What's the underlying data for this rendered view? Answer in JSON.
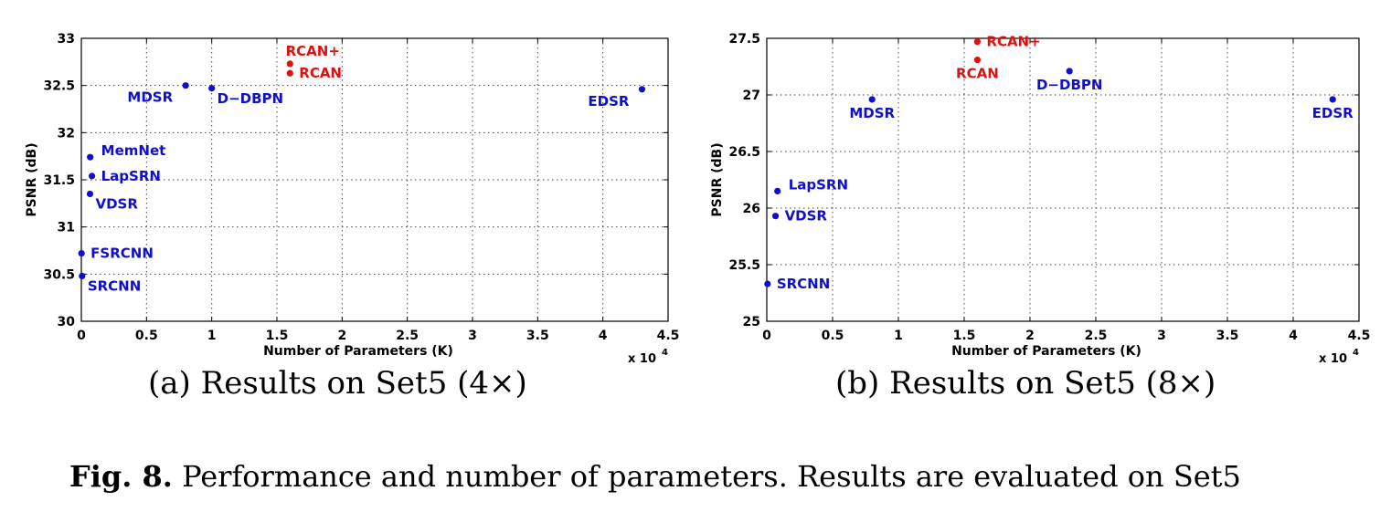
{
  "colors": {
    "baseline": "#1010cc",
    "ours": "#e01010",
    "grid": "#444444",
    "axis": "#000000"
  },
  "caption": {
    "label": "Fig. 8.",
    "text": "Performance and number of parameters. Results are evaluated on Set5"
  },
  "chart_data": [
    {
      "type": "scatter",
      "subcaption": "(a) Results on Set5 (4×)",
      "xlabel": "Number of Parameters (K)",
      "ylabel": "PSNR (dB)",
      "x_exponent": "x 10",
      "x_exponent_power": "4",
      "xlim": [
        0,
        4.5
      ],
      "ylim": [
        30,
        33
      ],
      "xticks": [
        0,
        0.5,
        1,
        1.5,
        2,
        2.5,
        3,
        3.5,
        4,
        4.5
      ],
      "yticks": [
        30,
        30.5,
        31,
        31.5,
        32,
        32.5,
        33
      ],
      "xtick_labels": [
        "0",
        "0.5",
        "1",
        "1.5",
        "2",
        "2.5",
        "3",
        "3.5",
        "4",
        "4.5"
      ],
      "ytick_labels": [
        "30",
        "30.5",
        "31",
        "31.5",
        "32",
        "32.5",
        "33"
      ],
      "grid": true,
      "points": [
        {
          "name": "SRCNN",
          "x": 0.0057,
          "y": 30.48,
          "group": "baseline",
          "label_pos": "below-right"
        },
        {
          "name": "FSRCNN",
          "x": 0.0012,
          "y": 30.72,
          "group": "baseline",
          "label_pos": "right"
        },
        {
          "name": "VDSR",
          "x": 0.0665,
          "y": 31.35,
          "group": "baseline",
          "label_pos": "below-right"
        },
        {
          "name": "LapSRN",
          "x": 0.0813,
          "y": 31.54,
          "group": "baseline",
          "label_pos": "right"
        },
        {
          "name": "MemNet",
          "x": 0.0677,
          "y": 31.74,
          "group": "baseline",
          "label_pos": "above-right"
        },
        {
          "name": "MDSR",
          "x": 0.8,
          "y": 32.5,
          "group": "baseline",
          "label_pos": "below-left"
        },
        {
          "name": "D−DBPN",
          "x": 1.0,
          "y": 32.47,
          "group": "baseline",
          "label_pos": "below-right"
        },
        {
          "name": "EDSR",
          "x": 4.3,
          "y": 32.46,
          "group": "baseline",
          "label_pos": "below-left"
        },
        {
          "name": "RCAN",
          "x": 1.6,
          "y": 32.63,
          "group": "ours",
          "label_pos": "right"
        },
        {
          "name": "RCAN+",
          "x": 1.6,
          "y": 32.73,
          "group": "ours",
          "label_pos": "above"
        }
      ]
    },
    {
      "type": "scatter",
      "subcaption": "(b) Results on Set5 (8×)",
      "xlabel": "Number of Parameters (K)",
      "ylabel": "PSNR (dB)",
      "x_exponent": "x 10",
      "x_exponent_power": "4",
      "xlim": [
        0,
        4.5
      ],
      "ylim": [
        25,
        27.5
      ],
      "xticks": [
        0,
        0.5,
        1,
        1.5,
        2,
        2.5,
        3,
        3.5,
        4,
        4.5
      ],
      "yticks": [
        25,
        25.5,
        26,
        26.5,
        27,
        27.5
      ],
      "xtick_labels": [
        "0",
        "0.5",
        "1",
        "1.5",
        "2",
        "2.5",
        "3",
        "3.5",
        "4",
        "4.5"
      ],
      "ytick_labels": [
        "25",
        "25.5",
        "26",
        "26.5",
        "27",
        "27.5"
      ],
      "grid": true,
      "points": [
        {
          "name": "SRCNN",
          "x": 0.0057,
          "y": 25.33,
          "group": "baseline",
          "label_pos": "right"
        },
        {
          "name": "VDSR",
          "x": 0.0665,
          "y": 25.93,
          "group": "baseline",
          "label_pos": "right"
        },
        {
          "name": "LapSRN",
          "x": 0.0813,
          "y": 26.15,
          "group": "baseline",
          "label_pos": "above-right"
        },
        {
          "name": "MDSR",
          "x": 0.8,
          "y": 26.96,
          "group": "baseline",
          "label_pos": "below"
        },
        {
          "name": "D−DBPN",
          "x": 2.3,
          "y": 27.21,
          "group": "baseline",
          "label_pos": "below"
        },
        {
          "name": "EDSR",
          "x": 4.3,
          "y": 26.96,
          "group": "baseline",
          "label_pos": "below"
        },
        {
          "name": "RCAN",
          "x": 1.6,
          "y": 27.31,
          "group": "ours",
          "label_pos": "below"
        },
        {
          "name": "RCAN+",
          "x": 1.6,
          "y": 27.47,
          "group": "ours",
          "label_pos": "right"
        }
      ]
    }
  ]
}
